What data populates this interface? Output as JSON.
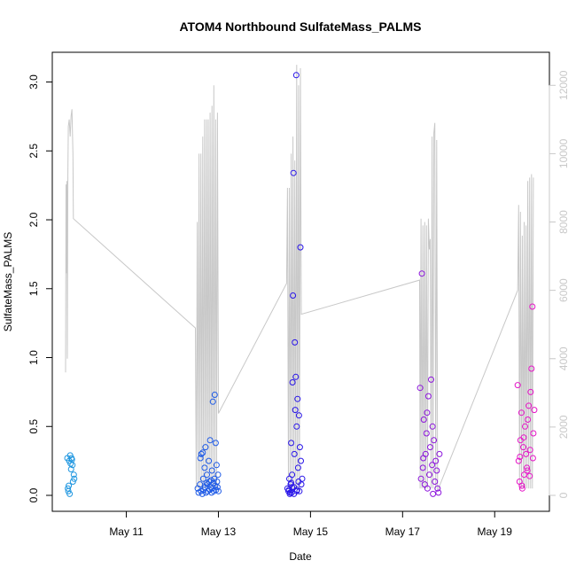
{
  "chart_data": {
    "type": "scatter",
    "title": "ATOM4 Northbound SulfateMass_PALMS",
    "xlabel": "Date",
    "ylabel": "SulfateMass_PALMS",
    "x_units": "day of May 2018 (fractional)",
    "xlim": [
      9.7,
      19.9
    ],
    "ylim": [
      0.0,
      3.1
    ],
    "y2lim": [
      0,
      12500
    ],
    "x_ticks": [
      {
        "value": 11,
        "label": "May 11"
      },
      {
        "value": 13,
        "label": "May 13"
      },
      {
        "value": 15,
        "label": "May 15"
      },
      {
        "value": 17,
        "label": "May 17"
      },
      {
        "value": 19,
        "label": "May 19"
      }
    ],
    "y_ticks": [
      {
        "value": 0.0,
        "label": "0.0"
      },
      {
        "value": 0.5,
        "label": "0.5"
      },
      {
        "value": 1.0,
        "label": "1.0"
      },
      {
        "value": 1.5,
        "label": "1.5"
      },
      {
        "value": 2.0,
        "label": "2.0"
      },
      {
        "value": 2.5,
        "label": "2.5"
      },
      {
        "value": 3.0,
        "label": "3.0"
      }
    ],
    "y2_ticks": [
      {
        "value": 0,
        "label": "0"
      },
      {
        "value": 2000,
        "label": "2000"
      },
      {
        "value": 4000,
        "label": "4000"
      },
      {
        "value": 6000,
        "label": "6000"
      },
      {
        "value": 8000,
        "label": "8000"
      },
      {
        "value": 10000,
        "label": "10000"
      },
      {
        "value": 12000,
        "label": "12000"
      }
    ],
    "grid": false,
    "secondary_axis_color": "#c8c8c8",
    "altitude_line_color": "#c8c8c8",
    "marker": "open-circle",
    "flights": [
      {
        "color": "#1e96e0",
        "points": [
          [
            9.72,
            0.27
          ],
          [
            9.73,
            0.05
          ],
          [
            9.74,
            0.03
          ],
          [
            9.75,
            0.07
          ],
          [
            9.76,
            0.25
          ],
          [
            9.77,
            0.01
          ],
          [
            9.78,
            0.29
          ],
          [
            9.79,
            0.23
          ],
          [
            9.8,
            0.19
          ],
          [
            9.81,
            0.27
          ],
          [
            9.82,
            0.26
          ],
          [
            9.83,
            0.22
          ],
          [
            9.84,
            0.1
          ],
          [
            9.86,
            0.15
          ],
          [
            9.87,
            0.12
          ]
        ],
        "altitude": [
          [
            9.68,
            3600
          ],
          [
            9.69,
            9100
          ],
          [
            9.7,
            6500
          ],
          [
            9.71,
            9200
          ],
          [
            9.72,
            4000
          ],
          [
            9.73,
            9400
          ],
          [
            9.74,
            10800
          ],
          [
            9.76,
            11000
          ],
          [
            9.78,
            10500
          ],
          [
            9.8,
            11100
          ],
          [
            9.82,
            11300
          ],
          [
            9.84,
            10000
          ],
          [
            9.85,
            8100
          ]
        ]
      },
      {
        "color": "#1e5ae6",
        "points": [
          [
            12.55,
            0.05
          ],
          [
            12.57,
            0.02
          ],
          [
            12.6,
            0.08
          ],
          [
            12.62,
            0.03
          ],
          [
            12.63,
            0.3
          ],
          [
            12.65,
            0.01
          ],
          [
            12.67,
            0.12
          ],
          [
            12.68,
            0.04
          ],
          [
            12.7,
            0.2
          ],
          [
            12.71,
            0.06
          ],
          [
            12.72,
            0.35
          ],
          [
            12.73,
            0.02
          ],
          [
            12.75,
            0.15
          ],
          [
            12.76,
            0.08
          ],
          [
            12.77,
            0.03
          ],
          [
            12.79,
            0.25
          ],
          [
            12.8,
            0.1
          ],
          [
            12.81,
            0.04
          ],
          [
            12.82,
            0.4
          ],
          [
            12.83,
            0.06
          ],
          [
            12.85,
            0.02
          ],
          [
            12.86,
            0.18
          ],
          [
            12.87,
            0.05
          ],
          [
            12.88,
            0.68
          ],
          [
            12.89,
            0.09
          ],
          [
            12.9,
            0.03
          ],
          [
            12.91,
            0.12
          ],
          [
            12.92,
            0.73
          ],
          [
            12.93,
            0.07
          ],
          [
            12.94,
            0.38
          ],
          [
            12.95,
            0.04
          ],
          [
            12.96,
            0.22
          ],
          [
            12.97,
            0.1
          ],
          [
            12.98,
            0.06
          ],
          [
            12.99,
            0.15
          ],
          [
            13.0,
            0.03
          ],
          [
            12.61,
            0.27
          ],
          [
            12.66,
            0.31
          ],
          [
            12.74,
            0.09
          ],
          [
            12.84,
            0.11
          ]
        ],
        "altitude": [
          [
            12.5,
            4900
          ],
          [
            12.52,
            200
          ],
          [
            12.54,
            8000
          ],
          [
            12.56,
            200
          ],
          [
            12.58,
            10000
          ],
          [
            12.6,
            200
          ],
          [
            12.62,
            10000
          ],
          [
            12.64,
            200
          ],
          [
            12.66,
            10500
          ],
          [
            12.68,
            200
          ],
          [
            12.7,
            11000
          ],
          [
            12.72,
            200
          ],
          [
            12.74,
            11000
          ],
          [
            12.76,
            200
          ],
          [
            12.78,
            11000
          ],
          [
            12.8,
            200
          ],
          [
            12.82,
            11200
          ],
          [
            12.84,
            200
          ],
          [
            12.86,
            11400
          ],
          [
            12.88,
            200
          ],
          [
            12.9,
            12000
          ],
          [
            12.92,
            200
          ],
          [
            12.94,
            11000
          ],
          [
            12.96,
            200
          ],
          [
            12.98,
            11200
          ],
          [
            13.0,
            2400
          ]
        ]
      },
      {
        "color": "#2814e8",
        "points": [
          [
            14.5,
            0.05
          ],
          [
            14.52,
            0.03
          ],
          [
            14.54,
            0.12
          ],
          [
            14.55,
            0.01
          ],
          [
            14.57,
            0.08
          ],
          [
            14.58,
            0.38
          ],
          [
            14.59,
            0.02
          ],
          [
            14.6,
            0.15
          ],
          [
            14.61,
            0.82
          ],
          [
            14.62,
            1.45
          ],
          [
            14.63,
            2.34
          ],
          [
            14.64,
            0.06
          ],
          [
            14.65,
            0.3
          ],
          [
            14.66,
            1.11
          ],
          [
            14.67,
            0.62
          ],
          [
            14.68,
            0.86
          ],
          [
            14.69,
            3.05
          ],
          [
            14.7,
            0.5
          ],
          [
            14.71,
            0.04
          ],
          [
            14.72,
            0.7
          ],
          [
            14.73,
            0.2
          ],
          [
            14.74,
            0.1
          ],
          [
            14.75,
            0.58
          ],
          [
            14.76,
            0.03
          ],
          [
            14.77,
            0.35
          ],
          [
            14.78,
            1.8
          ],
          [
            14.79,
            0.25
          ],
          [
            14.8,
            0.08
          ],
          [
            14.53,
            0.04
          ],
          [
            14.56,
            0.02
          ],
          [
            14.64,
            0.01
          ],
          [
            14.7,
            0.03
          ],
          [
            14.82,
            0.12
          ],
          [
            14.6,
            0.06
          ],
          [
            14.58,
            0.09
          ]
        ],
        "altitude": [
          [
            14.48,
            6200
          ],
          [
            14.5,
            9000
          ],
          [
            14.52,
            200
          ],
          [
            14.54,
            9000
          ],
          [
            14.56,
            200
          ],
          [
            14.58,
            10000
          ],
          [
            14.6,
            200
          ],
          [
            14.62,
            10500
          ],
          [
            14.64,
            200
          ],
          [
            14.66,
            9800
          ],
          [
            14.68,
            200
          ],
          [
            14.7,
            12600
          ],
          [
            14.72,
            200
          ],
          [
            14.74,
            12000
          ],
          [
            14.76,
            200
          ],
          [
            14.78,
            12500
          ],
          [
            14.8,
            5300
          ]
        ]
      },
      {
        "color": "#8c14dc",
        "points": [
          [
            17.38,
            0.78
          ],
          [
            17.4,
            0.12
          ],
          [
            17.42,
            1.61
          ],
          [
            17.44,
            0.2
          ],
          [
            17.46,
            0.55
          ],
          [
            17.48,
            0.08
          ],
          [
            17.5,
            0.3
          ],
          [
            17.52,
            0.45
          ],
          [
            17.54,
            0.05
          ],
          [
            17.56,
            0.72
          ],
          [
            17.58,
            0.15
          ],
          [
            17.6,
            0.35
          ],
          [
            17.62,
            0.84
          ],
          [
            17.64,
            0.22
          ],
          [
            17.66,
            0.01
          ],
          [
            17.68,
            0.4
          ],
          [
            17.7,
            0.1
          ],
          [
            17.72,
            0.25
          ],
          [
            17.74,
            0.18
          ],
          [
            17.76,
            0.05
          ],
          [
            17.78,
            0.02
          ],
          [
            17.8,
            0.3
          ],
          [
            17.45,
            0.27
          ],
          [
            17.53,
            0.6
          ],
          [
            17.65,
            0.5
          ]
        ],
        "altitude": [
          [
            17.37,
            6300
          ],
          [
            17.38,
            200
          ],
          [
            17.4,
            8100
          ],
          [
            17.42,
            200
          ],
          [
            17.44,
            7900
          ],
          [
            17.46,
            200
          ],
          [
            17.48,
            8000
          ],
          [
            17.5,
            200
          ],
          [
            17.52,
            7900
          ],
          [
            17.54,
            200
          ],
          [
            17.56,
            8100
          ],
          [
            17.58,
            7200
          ],
          [
            17.6,
            7500
          ],
          [
            17.62,
            200
          ],
          [
            17.64,
            10500
          ],
          [
            17.66,
            200
          ],
          [
            17.68,
            10600
          ],
          [
            17.7,
            10900
          ],
          [
            17.72,
            200
          ],
          [
            17.74,
            10400
          ],
          [
            17.76,
            200
          ],
          [
            17.78,
            200
          ]
        ]
      },
      {
        "color": "#e614c8",
        "points": [
          [
            19.5,
            0.8
          ],
          [
            19.52,
            0.25
          ],
          [
            19.54,
            0.1
          ],
          [
            19.56,
            0.4
          ],
          [
            19.58,
            0.6
          ],
          [
            19.6,
            0.05
          ],
          [
            19.62,
            0.35
          ],
          [
            19.64,
            0.15
          ],
          [
            19.66,
            0.5
          ],
          [
            19.68,
            0.3
          ],
          [
            19.7,
            0.2
          ],
          [
            19.72,
            0.55
          ],
          [
            19.74,
            0.65
          ],
          [
            19.76,
            0.14
          ],
          [
            19.78,
            0.75
          ],
          [
            19.8,
            0.92
          ],
          [
            19.82,
            1.37
          ],
          [
            19.84,
            0.45
          ],
          [
            19.86,
            0.62
          ],
          [
            19.55,
            0.28
          ],
          [
            19.63,
            0.42
          ],
          [
            19.71,
            0.18
          ],
          [
            19.77,
            0.33
          ],
          [
            19.83,
            0.27
          ],
          [
            19.59,
            0.07
          ]
        ],
        "altitude": [
          [
            19.5,
            6000
          ],
          [
            19.52,
            8500
          ],
          [
            19.54,
            200
          ],
          [
            19.56,
            8300
          ],
          [
            19.58,
            200
          ],
          [
            19.6,
            7600
          ],
          [
            19.62,
            200
          ],
          [
            19.64,
            8000
          ],
          [
            19.66,
            200
          ],
          [
            19.68,
            7900
          ],
          [
            19.7,
            200
          ],
          [
            19.72,
            9200
          ],
          [
            19.74,
            200
          ],
          [
            19.76,
            9300
          ],
          [
            19.78,
            200
          ],
          [
            19.8,
            9400
          ],
          [
            19.82,
            200
          ],
          [
            19.84,
            9300
          ]
        ]
      }
    ]
  }
}
